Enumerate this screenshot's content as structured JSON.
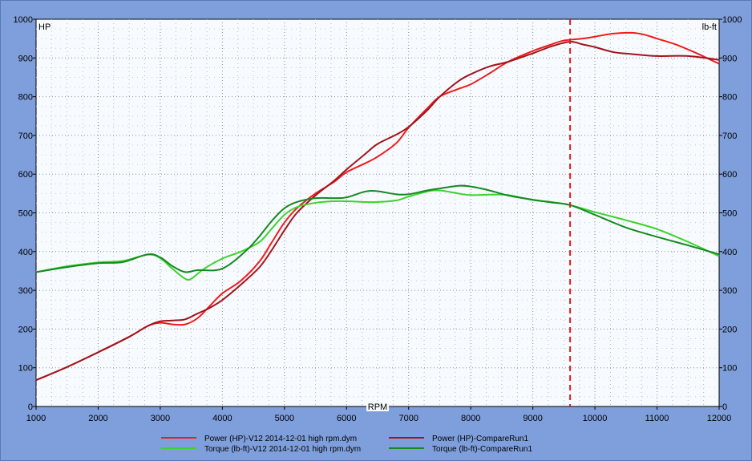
{
  "chart_data": {
    "type": "line",
    "xlabel": "RPM",
    "y_left_label": "HP",
    "y_right_label": "lb-ft",
    "xlim": [
      1000,
      12000
    ],
    "ylim": [
      0,
      1000
    ],
    "x_ticks": [
      "1000",
      "2000",
      "3000",
      "4000",
      "5000",
      "6000",
      "7000",
      "8000",
      "9000",
      "10000",
      "11000",
      "12000"
    ],
    "y_ticks": [
      "0",
      "100",
      "200",
      "300",
      "400",
      "500",
      "600",
      "700",
      "800",
      "900",
      "1000"
    ],
    "grid": true,
    "cursor_rpm": 9600,
    "series": [
      {
        "name": "Power (HP)-V12 2014-12-01 high rpm.dym",
        "color": "#ee1c1c",
        "points": [
          [
            1000,
            68
          ],
          [
            1500,
            102
          ],
          [
            2000,
            140
          ],
          [
            2500,
            180
          ],
          [
            2800,
            208
          ],
          [
            3000,
            216
          ],
          [
            3200,
            212
          ],
          [
            3400,
            212
          ],
          [
            3600,
            228
          ],
          [
            3800,
            260
          ],
          [
            4000,
            292
          ],
          [
            4300,
            325
          ],
          [
            4600,
            375
          ],
          [
            4800,
            425
          ],
          [
            5000,
            475
          ],
          [
            5200,
            512
          ],
          [
            5500,
            550
          ],
          [
            5800,
            580
          ],
          [
            6000,
            605
          ],
          [
            6300,
            628
          ],
          [
            6500,
            645
          ],
          [
            6800,
            680
          ],
          [
            7000,
            720
          ],
          [
            7300,
            770
          ],
          [
            7500,
            800
          ],
          [
            7800,
            820
          ],
          [
            8000,
            832
          ],
          [
            8300,
            860
          ],
          [
            8600,
            890
          ],
          [
            9000,
            918
          ],
          [
            9300,
            935
          ],
          [
            9500,
            945
          ],
          [
            9800,
            950
          ],
          [
            10000,
            955
          ],
          [
            10300,
            963
          ],
          [
            10600,
            965
          ],
          [
            10800,
            960
          ],
          [
            11000,
            950
          ],
          [
            11300,
            935
          ],
          [
            11600,
            915
          ],
          [
            11800,
            900
          ],
          [
            12000,
            885
          ]
        ]
      },
      {
        "name": "Power (HP)-CompareRun1",
        "color": "#a0151c",
        "points": [
          [
            1000,
            68
          ],
          [
            1500,
            102
          ],
          [
            2000,
            140
          ],
          [
            2500,
            180
          ],
          [
            2800,
            208
          ],
          [
            3000,
            220
          ],
          [
            3200,
            222
          ],
          [
            3400,
            225
          ],
          [
            3600,
            240
          ],
          [
            3800,
            255
          ],
          [
            4000,
            275
          ],
          [
            4300,
            315
          ],
          [
            4600,
            360
          ],
          [
            4800,
            405
          ],
          [
            5000,
            455
          ],
          [
            5200,
            500
          ],
          [
            5500,
            545
          ],
          [
            5800,
            583
          ],
          [
            6000,
            612
          ],
          [
            6300,
            652
          ],
          [
            6500,
            678
          ],
          [
            6800,
            702
          ],
          [
            7000,
            722
          ],
          [
            7300,
            765
          ],
          [
            7500,
            800
          ],
          [
            7800,
            840
          ],
          [
            8000,
            858
          ],
          [
            8300,
            878
          ],
          [
            8600,
            890
          ],
          [
            9000,
            912
          ],
          [
            9300,
            930
          ],
          [
            9600,
            942
          ],
          [
            9800,
            935
          ],
          [
            10000,
            928
          ],
          [
            10300,
            915
          ],
          [
            10600,
            910
          ],
          [
            11000,
            905
          ],
          [
            11500,
            905
          ],
          [
            12000,
            895
          ]
        ]
      },
      {
        "name": "Torque (lb-ft)-V12 2014-12-01 high rpm.dym",
        "color": "#3ed22c",
        "points": [
          [
            1000,
            347
          ],
          [
            1500,
            362
          ],
          [
            2000,
            372
          ],
          [
            2400,
            376
          ],
          [
            2800,
            392
          ],
          [
            3000,
            383
          ],
          [
            3200,
            355
          ],
          [
            3400,
            330
          ],
          [
            3500,
            330
          ],
          [
            3700,
            355
          ],
          [
            4000,
            382
          ],
          [
            4300,
            400
          ],
          [
            4600,
            425
          ],
          [
            4800,
            460
          ],
          [
            5000,
            495
          ],
          [
            5200,
            515
          ],
          [
            5500,
            526
          ],
          [
            5800,
            530
          ],
          [
            6000,
            530
          ],
          [
            6300,
            528
          ],
          [
            6500,
            528
          ],
          [
            6800,
            532
          ],
          [
            7000,
            542
          ],
          [
            7300,
            555
          ],
          [
            7500,
            558
          ],
          [
            7800,
            550
          ],
          [
            8000,
            546
          ],
          [
            8300,
            547
          ],
          [
            8600,
            546
          ],
          [
            9000,
            533
          ],
          [
            9300,
            528
          ],
          [
            9600,
            520
          ],
          [
            10000,
            502
          ],
          [
            10500,
            481
          ],
          [
            11000,
            458
          ],
          [
            11500,
            425
          ],
          [
            12000,
            388
          ]
        ]
      },
      {
        "name": "Torque (lb-ft)-CompareRun1",
        "color": "#148a21",
        "points": [
          [
            1000,
            347
          ],
          [
            1500,
            360
          ],
          [
            2000,
            370
          ],
          [
            2400,
            373
          ],
          [
            2800,
            393
          ],
          [
            3000,
            385
          ],
          [
            3200,
            362
          ],
          [
            3400,
            347
          ],
          [
            3600,
            352
          ],
          [
            3900,
            352
          ],
          [
            4100,
            365
          ],
          [
            4400,
            405
          ],
          [
            4600,
            440
          ],
          [
            4800,
            480
          ],
          [
            5000,
            512
          ],
          [
            5200,
            528
          ],
          [
            5500,
            538
          ],
          [
            5800,
            538
          ],
          [
            6000,
            540
          ],
          [
            6300,
            555
          ],
          [
            6500,
            556
          ],
          [
            6800,
            548
          ],
          [
            7000,
            548
          ],
          [
            7300,
            558
          ],
          [
            7500,
            563
          ],
          [
            7800,
            570
          ],
          [
            8000,
            568
          ],
          [
            8300,
            558
          ],
          [
            8600,
            545
          ],
          [
            9000,
            534
          ],
          [
            9300,
            527
          ],
          [
            9600,
            520
          ],
          [
            10000,
            495
          ],
          [
            10500,
            462
          ],
          [
            11000,
            438
          ],
          [
            11500,
            416
          ],
          [
            12000,
            393
          ]
        ]
      }
    ]
  }
}
